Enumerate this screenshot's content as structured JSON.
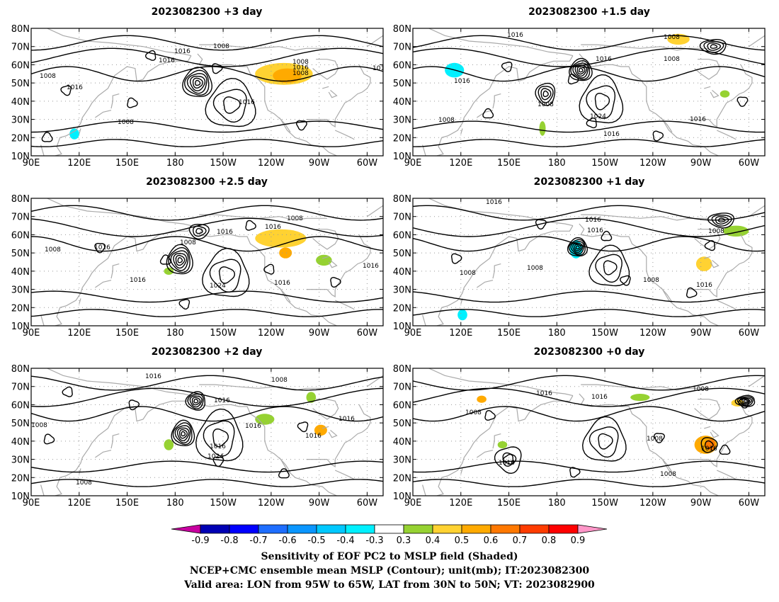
{
  "panels": [
    {
      "title": "2023082300  +3 day",
      "contour_labels": [
        "1016",
        "1008",
        "1016",
        "1008",
        "1016",
        "1008",
        "1016",
        "1008",
        "1016",
        "1008",
        "1016"
      ],
      "shading": [
        {
          "lon": 248,
          "lat": 55,
          "rx": 18,
          "ry": 6,
          "val": 0.4
        },
        {
          "lon": 250,
          "lat": 54,
          "rx": 9,
          "ry": 4,
          "val": 0.5
        },
        {
          "lon": 229,
          "lat": 76,
          "rx": 3,
          "ry": 2,
          "val": -0.3
        },
        {
          "lon": 117,
          "lat": 22,
          "rx": 3,
          "ry": 3,
          "val": -0.4
        },
        {
          "lon": 110,
          "lat": 30,
          "rx": 2,
          "ry": 3,
          "val": -0.3
        },
        {
          "lon": 227,
          "lat": 13,
          "rx": 6,
          "ry": 2,
          "val": -0.3
        },
        {
          "lon": 208,
          "lat": 44,
          "rx": 2,
          "ry": 2,
          "val": -0.3
        }
      ],
      "lows": [
        {
          "lon": 194,
          "lat": 50,
          "n": 6,
          "rx": 9,
          "ry": 8
        }
      ],
      "highs": [
        {
          "lon": 215,
          "lat": 38,
          "n": 3,
          "rx": 15,
          "ry": 13
        }
      ]
    },
    {
      "title": "2023082300  +1.5 day",
      "contour_labels": [
        "1016",
        "1008",
        "1016",
        "1008",
        "1008",
        "1024",
        "1016",
        "1016",
        "1008",
        "1016"
      ],
      "shading": [
        {
          "lon": 120,
          "lat": 62,
          "rx": 13,
          "ry": 7,
          "val": -0.3
        },
        {
          "lon": 116,
          "lat": 57,
          "rx": 6,
          "ry": 4,
          "val": -0.4
        },
        {
          "lon": 118,
          "lat": 15,
          "rx": 8,
          "ry": 4,
          "val": -0.3
        },
        {
          "lon": 171,
          "lat": 25,
          "rx": 2,
          "ry": 4,
          "val": 0.3
        },
        {
          "lon": 256,
          "lat": 74,
          "rx": 7,
          "ry": 3,
          "val": 0.4
        },
        {
          "lon": 285,
          "lat": 44,
          "rx": 3,
          "ry": 2,
          "val": 0.3
        }
      ],
      "lows": [
        {
          "lon": 195,
          "lat": 57,
          "n": 6,
          "rx": 7,
          "ry": 6
        },
        {
          "lon": 173,
          "lat": 44,
          "n": 4,
          "rx": 6,
          "ry": 6
        },
        {
          "lon": 278,
          "lat": 70,
          "n": 4,
          "rx": 8,
          "ry": 4
        }
      ],
      "highs": [
        {
          "lon": 208,
          "lat": 40,
          "n": 3,
          "rx": 13,
          "ry": 13
        }
      ]
    },
    {
      "title": "2023082300  +2.5 day",
      "contour_labels": [
        "1016",
        "1008",
        "1016",
        "1008",
        "1016",
        "1016",
        "1024",
        "1016",
        "1016",
        "1008"
      ],
      "shading": [
        {
          "lon": 246,
          "lat": 58,
          "rx": 16,
          "ry": 5,
          "val": 0.4
        },
        {
          "lon": 249,
          "lat": 50,
          "rx": 4,
          "ry": 3,
          "val": 0.5
        },
        {
          "lon": 273,
          "lat": 46,
          "rx": 5,
          "ry": 3,
          "val": 0.3
        },
        {
          "lon": 113,
          "lat": 15,
          "rx": 3,
          "ry": 4,
          "val": -0.3
        },
        {
          "lon": 176,
          "lat": 40,
          "rx": 3,
          "ry": 2,
          "val": 0.3
        }
      ],
      "lows": [
        {
          "lon": 183,
          "lat": 46,
          "n": 6,
          "rx": 8,
          "ry": 8
        },
        {
          "lon": 195,
          "lat": 62,
          "n": 3,
          "rx": 6,
          "ry": 4
        }
      ],
      "highs": [
        {
          "lon": 212,
          "lat": 38,
          "n": 3,
          "rx": 14,
          "ry": 13
        }
      ]
    },
    {
      "title": "2023082300  +1 day",
      "contour_labels": [
        "1016",
        "1008",
        "1016",
        "1008",
        "1016",
        "1008",
        "1008",
        "1016"
      ],
      "shading": [
        {
          "lon": 115,
          "lat": 63,
          "rx": 13,
          "ry": 5,
          "val": -0.3
        },
        {
          "lon": 120,
          "lat": 18,
          "rx": 6,
          "ry": 6,
          "val": -0.3
        },
        {
          "lon": 121,
          "lat": 16,
          "rx": 3,
          "ry": 3,
          "val": -0.4
        },
        {
          "lon": 192,
          "lat": 52,
          "rx": 4,
          "ry": 5,
          "val": -0.4
        },
        {
          "lon": 272,
          "lat": 44,
          "rx": 5,
          "ry": 4,
          "val": 0.4
        },
        {
          "lon": 292,
          "lat": 62,
          "rx": 8,
          "ry": 3,
          "val": 0.3
        }
      ],
      "lows": [
        {
          "lon": 193,
          "lat": 53,
          "n": 6,
          "rx": 6,
          "ry": 5
        },
        {
          "lon": 283,
          "lat": 68,
          "n": 4,
          "rx": 8,
          "ry": 4
        }
      ],
      "highs": [
        {
          "lon": 213,
          "lat": 42,
          "n": 3,
          "rx": 12,
          "ry": 11
        }
      ]
    },
    {
      "title": "2023082300  +2 day",
      "contour_labels": [
        "1016",
        "1008",
        "1016",
        "1008",
        "1016",
        "1016",
        "1024",
        "1016",
        "1008",
        "1016"
      ],
      "shading": [
        {
          "lon": 105,
          "lat": 62,
          "rx": 8,
          "ry": 4,
          "val": -0.3
        },
        {
          "lon": 118,
          "lat": 20,
          "rx": 8,
          "ry": 5,
          "val": -0.3
        },
        {
          "lon": 236,
          "lat": 52,
          "rx": 6,
          "ry": 3,
          "val": 0.3
        },
        {
          "lon": 271,
          "lat": 46,
          "rx": 4,
          "ry": 3,
          "val": 0.5
        },
        {
          "lon": 265,
          "lat": 64,
          "rx": 3,
          "ry": 3,
          "val": 0.3
        },
        {
          "lon": 176,
          "lat": 38,
          "rx": 3,
          "ry": 3,
          "val": 0.3
        }
      ],
      "lows": [
        {
          "lon": 185,
          "lat": 44,
          "n": 6,
          "rx": 7,
          "ry": 7
        },
        {
          "lon": 193,
          "lat": 62,
          "n": 5,
          "rx": 6,
          "ry": 5
        }
      ],
      "highs": [
        {
          "lon": 208,
          "lat": 42,
          "n": 3,
          "rx": 14,
          "ry": 14
        }
      ]
    },
    {
      "title": "2023082300  +0 day",
      "contour_labels": [
        "1016",
        "1008",
        "1016",
        "1008",
        "1016",
        "1008",
        "1016",
        "1008"
      ],
      "shading": [
        {
          "lon": 273,
          "lat": 38,
          "rx": 7,
          "ry": 5,
          "val": 0.5
        },
        {
          "lon": 276,
          "lat": 38,
          "rx": 3,
          "ry": 3,
          "val": 0.6
        },
        {
          "lon": 133,
          "lat": 63,
          "rx": 3,
          "ry": 2,
          "val": 0.5
        },
        {
          "lon": 293,
          "lat": 61,
          "rx": 4,
          "ry": 2,
          "val": 0.4
        },
        {
          "lon": 146,
          "lat": 38,
          "rx": 3,
          "ry": 2,
          "val": 0.3
        },
        {
          "lon": 232,
          "lat": 64,
          "rx": 6,
          "ry": 2,
          "val": 0.3
        },
        {
          "lon": 106,
          "lat": 52,
          "rx": 2,
          "ry": 2,
          "val": -0.3
        }
      ],
      "lows": [
        {
          "lon": 298,
          "lat": 62,
          "n": 5,
          "rx": 6,
          "ry": 3
        },
        {
          "lon": 275,
          "lat": 38,
          "n": 2,
          "rx": 5,
          "ry": 4
        }
      ],
      "highs": [
        {
          "lon": 210,
          "lat": 40,
          "n": 3,
          "rx": 13,
          "ry": 12
        },
        {
          "lon": 150,
          "lat": 30,
          "n": 2,
          "rx": 8,
          "ry": 7
        }
      ]
    }
  ],
  "x_ticks": [
    "90E",
    "120E",
    "150E",
    "180",
    "150W",
    "120W",
    "90W",
    "60W"
  ],
  "y_ticks": [
    "80N",
    "70N",
    "60N",
    "50N",
    "40N",
    "30N",
    "20N",
    "10N"
  ],
  "colorbar": {
    "labels": [
      "-0.9",
      "-0.8",
      "-0.7",
      "-0.6",
      "-0.5",
      "-0.4",
      "-0.3",
      "0.3",
      "0.4",
      "0.5",
      "0.6",
      "0.7",
      "0.8",
      "0.9"
    ],
    "colors": [
      "#0000b4",
      "#0000ff",
      "#1e6eff",
      "#0a96ff",
      "#00c8ff",
      "#00f0ff",
      "#ffffff",
      "#96d232",
      "#ffd232",
      "#ffaa00",
      "#ff7800",
      "#ff3c00",
      "#ff0000"
    ],
    "left_tip_color": "#c800a0",
    "right_tip_color": "#ff96c8"
  },
  "caption": [
    "Sensitivity of EOF PC2 to MSLP field (Shaded)",
    "NCEP+CMC ensemble mean MSLP (Contour); unit(mb); IT:2023082300",
    "Valid area: LON from 95W to 65W, LAT from 30N to 50N; VT: 2023082900"
  ]
}
